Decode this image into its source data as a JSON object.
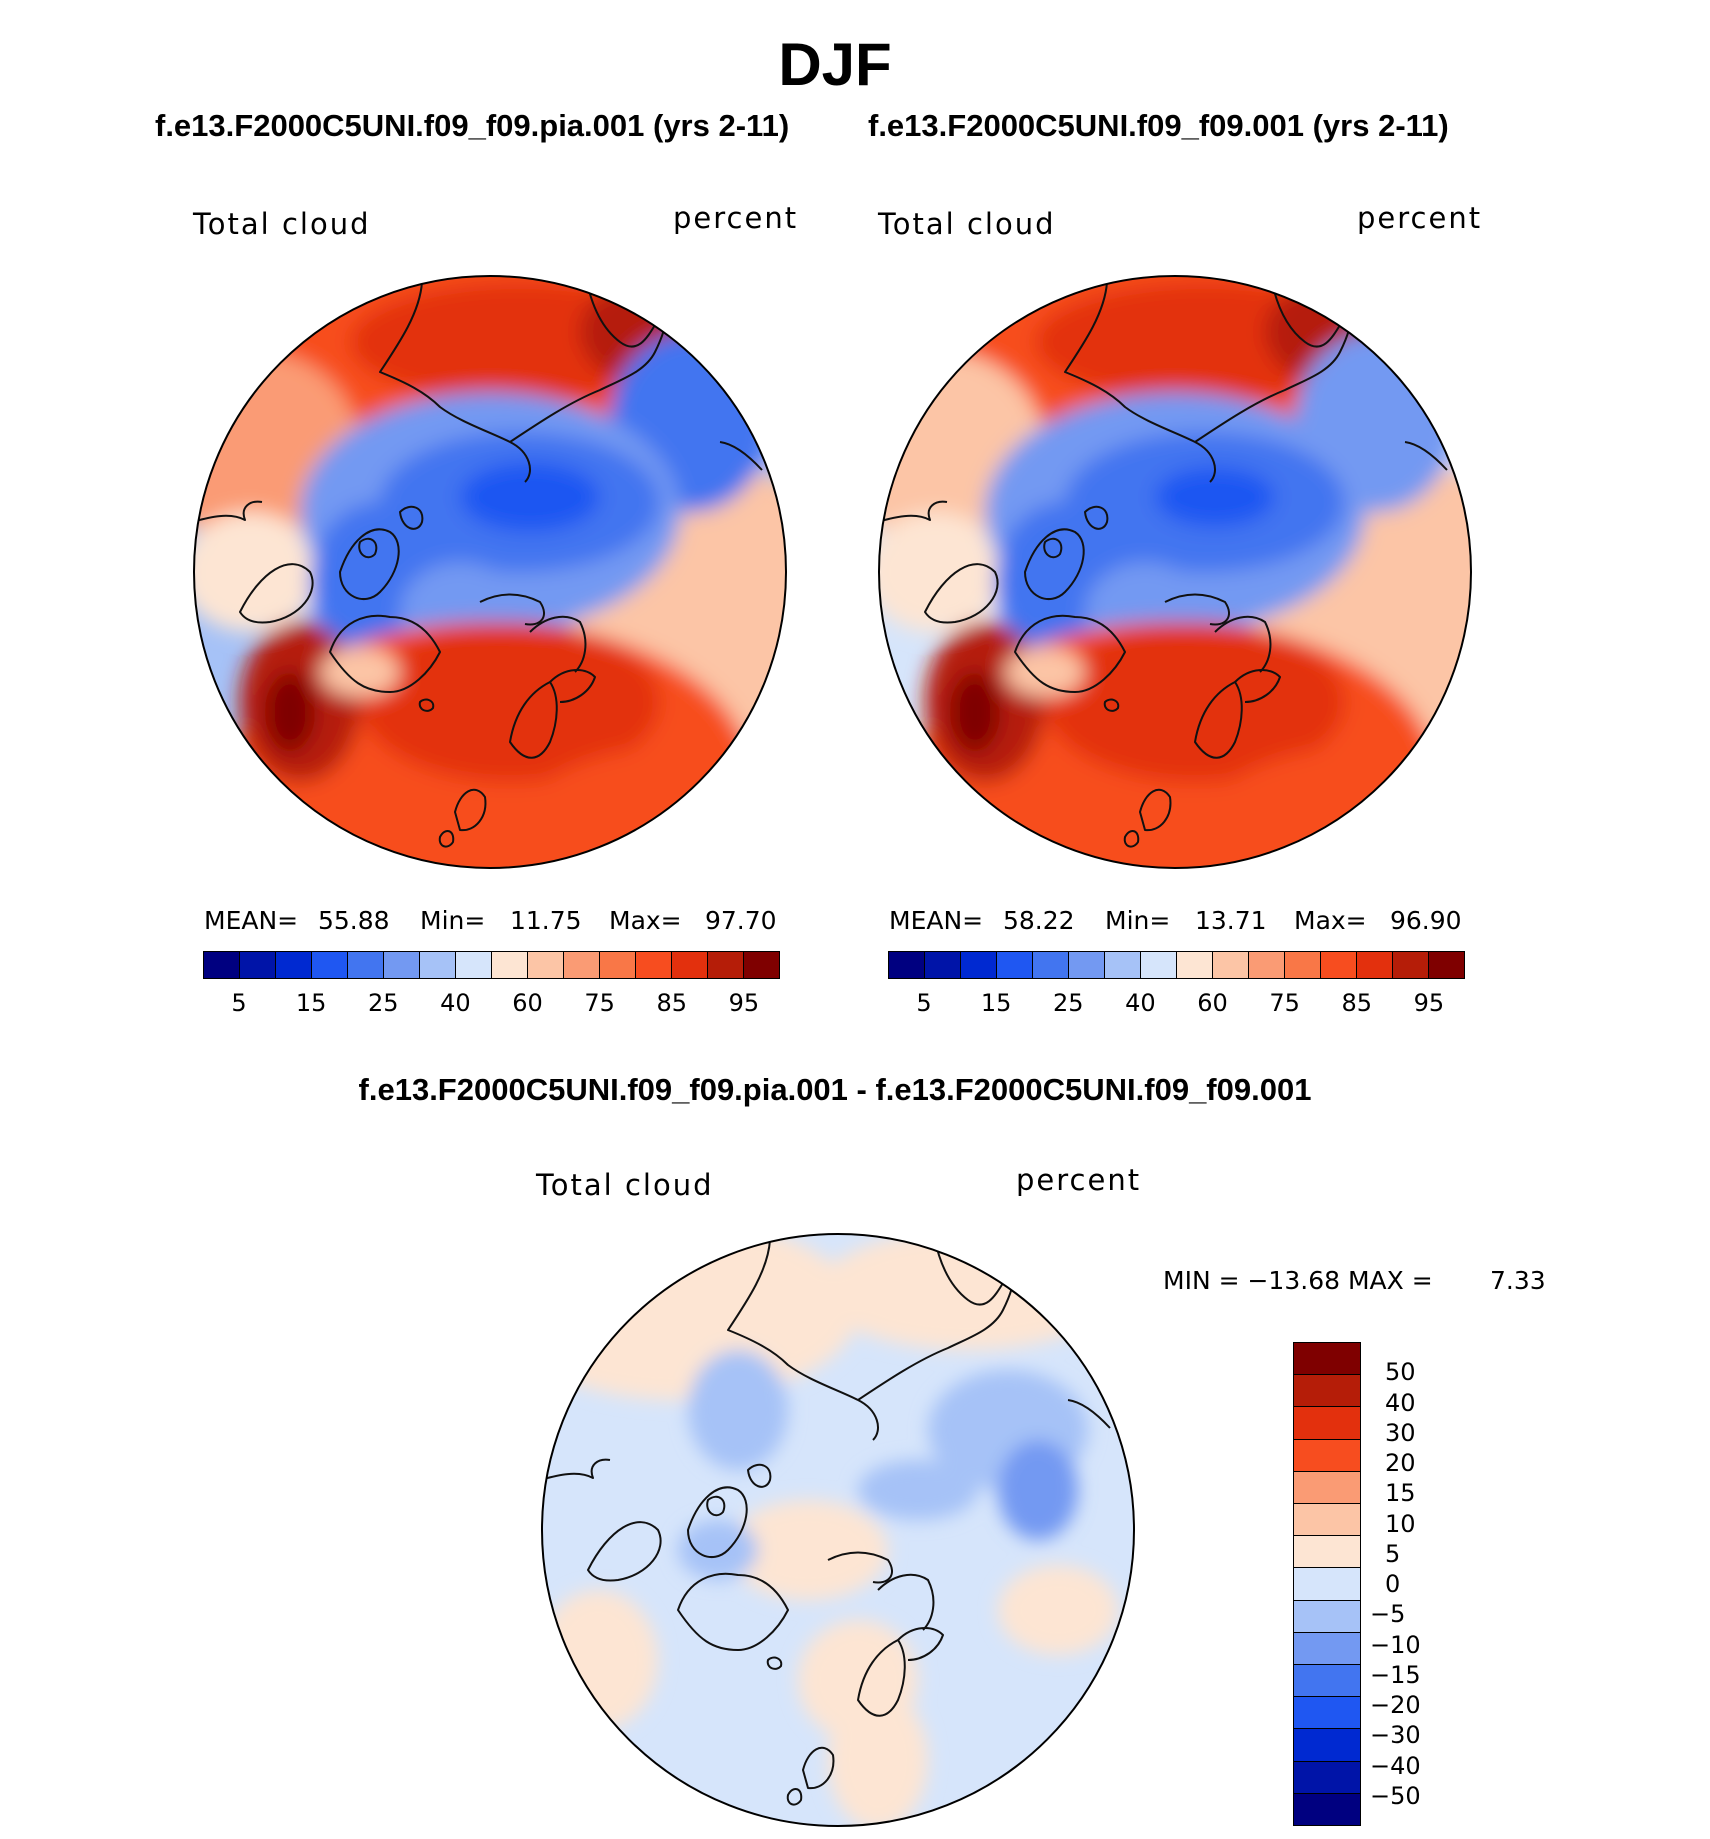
{
  "figure": {
    "season": "DJF",
    "left_title": "f.e13.F2000C5UNI.f09_f09.pia.001 (yrs 2-11)",
    "right_title": "f.e13.F2000C5UNI.f09_f09.001 (yrs 2-11)",
    "diff_title": "f.e13.F2000C5UNI.f09_f09.pia.001 - f.e13.F2000C5UNI.f09_f09.001"
  },
  "colors": {
    "map_seq": [
      "#000080",
      "#0014a8",
      "#0029d1",
      "#1f57f2",
      "#4275f0",
      "#7399f2",
      "#a6c2f7",
      "#d6e5fb",
      "#fde5d3",
      "#fcc5a6",
      "#fa9b74",
      "#f97747",
      "#f74d1f",
      "#e3300d",
      "#b51d08",
      "#7f0000"
    ],
    "diff_seq": [
      "#7f0000",
      "#b51d08",
      "#e3300d",
      "#f74d1f",
      "#fa9b74",
      "#fcc5a6",
      "#fde5d3",
      "#d6e5fb",
      "#a6c2f7",
      "#7399f2",
      "#4275f0",
      "#1f57f2",
      "#0029d1",
      "#0014a8",
      "#000080"
    ],
    "coast": "#111111"
  },
  "panels": {
    "left": {
      "field": "Total cloud",
      "units": "percent",
      "mean_label": "MEAN=",
      "mean": "55.88",
      "min_label": "Min=",
      "min": "11.75",
      "max_label": "Max=",
      "max": "97.70"
    },
    "right": {
      "field": "Total cloud",
      "units": "percent",
      "mean_label": "MEAN=",
      "mean": "58.22",
      "min_label": "Min=",
      "min": "13.71",
      "max_label": "Max=",
      "max": "96.90"
    },
    "diff": {
      "field": "Total cloud",
      "units": "percent",
      "minmax_text": "MIN = −13.68 MAX =",
      "max_value": "7.33"
    }
  },
  "colorbar_ticks": [
    "5",
    "15",
    "25",
    "40",
    "60",
    "75",
    "85",
    "95"
  ],
  "diff_ticks": [
    "50",
    "40",
    "30",
    "20",
    "15",
    "10",
    "5",
    "0",
    "−5",
    "−10",
    "−15",
    "−20",
    "−30",
    "−40",
    "−50"
  ]
}
